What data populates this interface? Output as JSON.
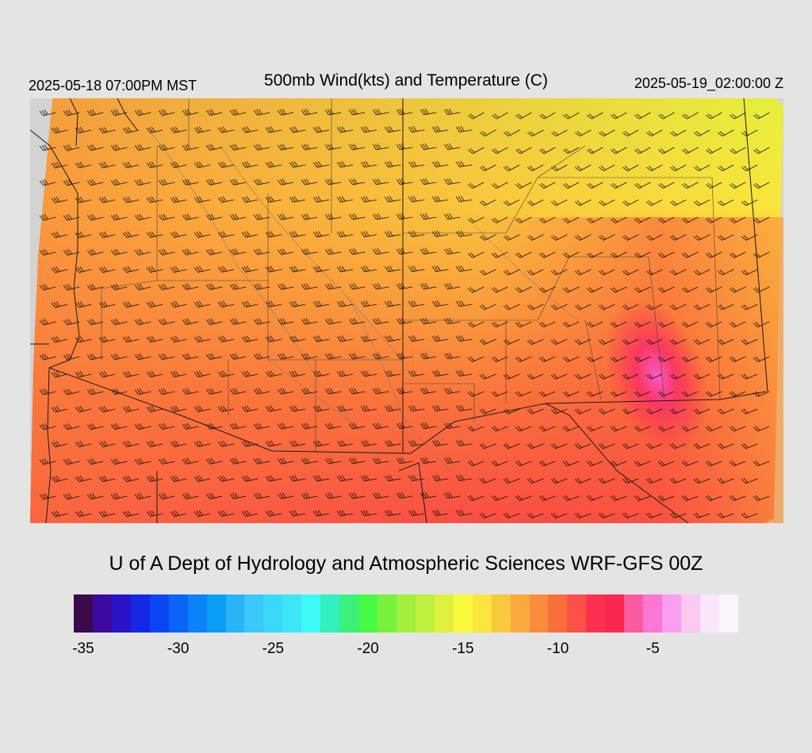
{
  "header": {
    "local_time": "2025-05-18 07:00PM MST",
    "title": "500mb Wind(kts) and Temperature (C)",
    "valid_time": "2025-05-19_02:00:00 Z"
  },
  "credit": "U of A Dept of Hydrology and Atmospheric Sciences WRF-GFS 00Z",
  "colorbar": {
    "colors": [
      "#3a0a4a",
      "#3c0aa0",
      "#2a14c8",
      "#1428e6",
      "#0a46f4",
      "#0a64f8",
      "#0a82f8",
      "#0a9ef6",
      "#28b4f6",
      "#3cc8fa",
      "#3cd8fa",
      "#3ce6fa",
      "#3cfaf6",
      "#32f0c0",
      "#3cf07c",
      "#46fa46",
      "#78f03c",
      "#a0f03c",
      "#c0f040",
      "#e0f040",
      "#fafa3c",
      "#fae63c",
      "#fac83c",
      "#faaa3c",
      "#fa8c3c",
      "#fa6e3c",
      "#fa5046",
      "#fa3250",
      "#fa2850",
      "#fa5aa0",
      "#fa78d2",
      "#fa9ef0",
      "#fac8f0",
      "#fae6fa",
      "#fcf4fc"
    ],
    "ticks": [
      {
        "label": "-35",
        "index": 0.5
      },
      {
        "label": "-30",
        "index": 5.5
      },
      {
        "label": "-25",
        "index": 10.5
      },
      {
        "label": "-20",
        "index": 15.5
      },
      {
        "label": "-15",
        "index": 20.5
      },
      {
        "label": "-10",
        "index": 25.5
      },
      {
        "label": "-5",
        "index": 30.5
      }
    ]
  }
}
